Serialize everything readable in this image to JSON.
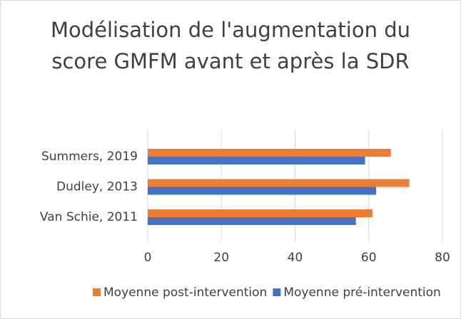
{
  "chart_data": {
    "type": "hbar",
    "title": "Modélisation de l'augmentation du score GMFM avant et après la SDR",
    "categories": [
      "Van Schie, 2011",
      "Dudley, 2013",
      "Summers, 2019"
    ],
    "series": [
      {
        "name": "Moyenne post-intervention",
        "color": "#ed7d31",
        "values": [
          61,
          71,
          66
        ]
      },
      {
        "name": "Moyenne pré-intervention",
        "color": "#4472c4",
        "values": [
          56.5,
          62,
          59
        ]
      }
    ],
    "xlim": [
      0,
      80
    ],
    "xticks": [
      0,
      20,
      40,
      60,
      80
    ],
    "grid": true,
    "legend": "bottom"
  }
}
